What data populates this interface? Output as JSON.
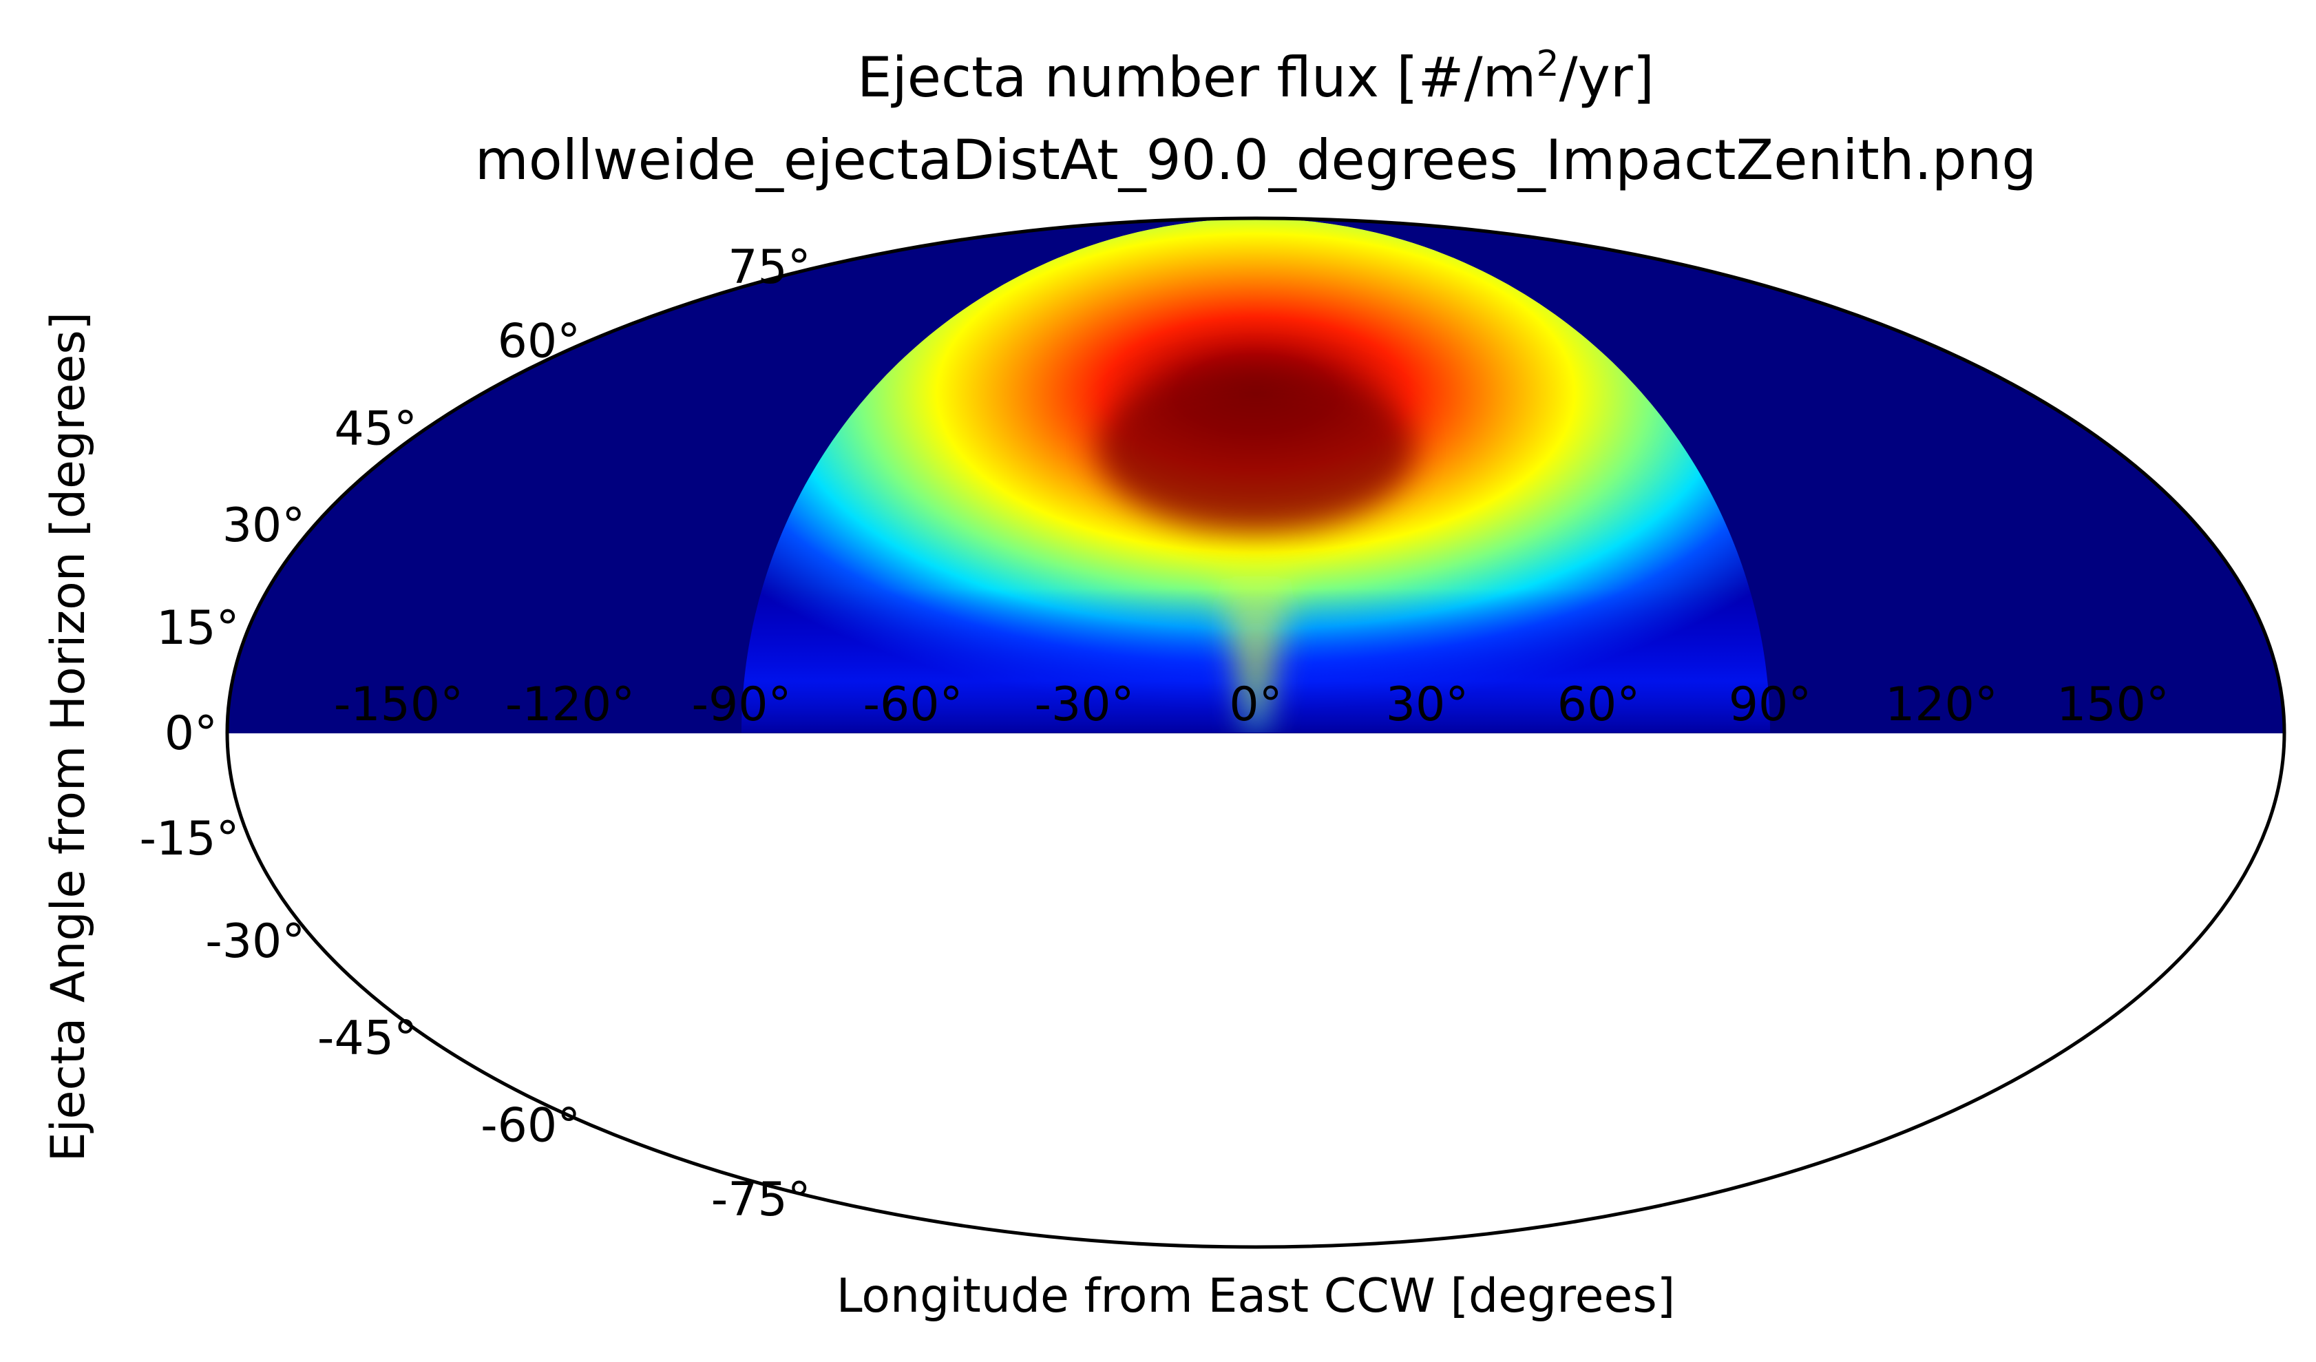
{
  "title_prefix": "Ejecta number flux [#/m",
  "title_sup": "2",
  "title_suffix": "/yr]",
  "chart_data": {
    "type": "heatmap",
    "projection": "mollweide",
    "title": "Ejecta number flux [#/m2/yr]",
    "subtitle": "mollweide_ejectaDistAt_90.0_degrees_ImpactZenith.png",
    "xlabel": "Longitude from East CCW [degrees]",
    "ylabel": "Ejecta Angle from Horizon [degrees]",
    "xlim": [
      -180,
      180
    ],
    "ylim": [
      -90,
      90
    ],
    "colormap": "jet",
    "background_color": "#00007f",
    "data_extent": {
      "lon": [
        -90,
        90
      ],
      "lat": [
        0,
        90
      ]
    },
    "peak": {
      "lon": 0,
      "lat": 45
    },
    "x_ticks": [
      -150,
      -120,
      -90,
      -60,
      -30,
      0,
      30,
      60,
      90,
      120,
      150
    ],
    "x_tick_labels": [
      "-150°",
      "-120°",
      "-90°",
      "-60°",
      "-30°",
      "0°",
      "30°",
      "60°",
      "90°",
      "120°",
      "150°"
    ],
    "y_ticks": [
      75,
      60,
      45,
      30,
      15,
      0,
      -15,
      -30,
      -45,
      -60,
      -75
    ],
    "y_tick_labels": [
      "75°",
      "60°",
      "45°",
      "30°",
      "15°",
      "0°",
      "-15°",
      "-30°",
      "-45°",
      "-60°",
      "-75°"
    ],
    "grid": false,
    "legend": "none"
  }
}
